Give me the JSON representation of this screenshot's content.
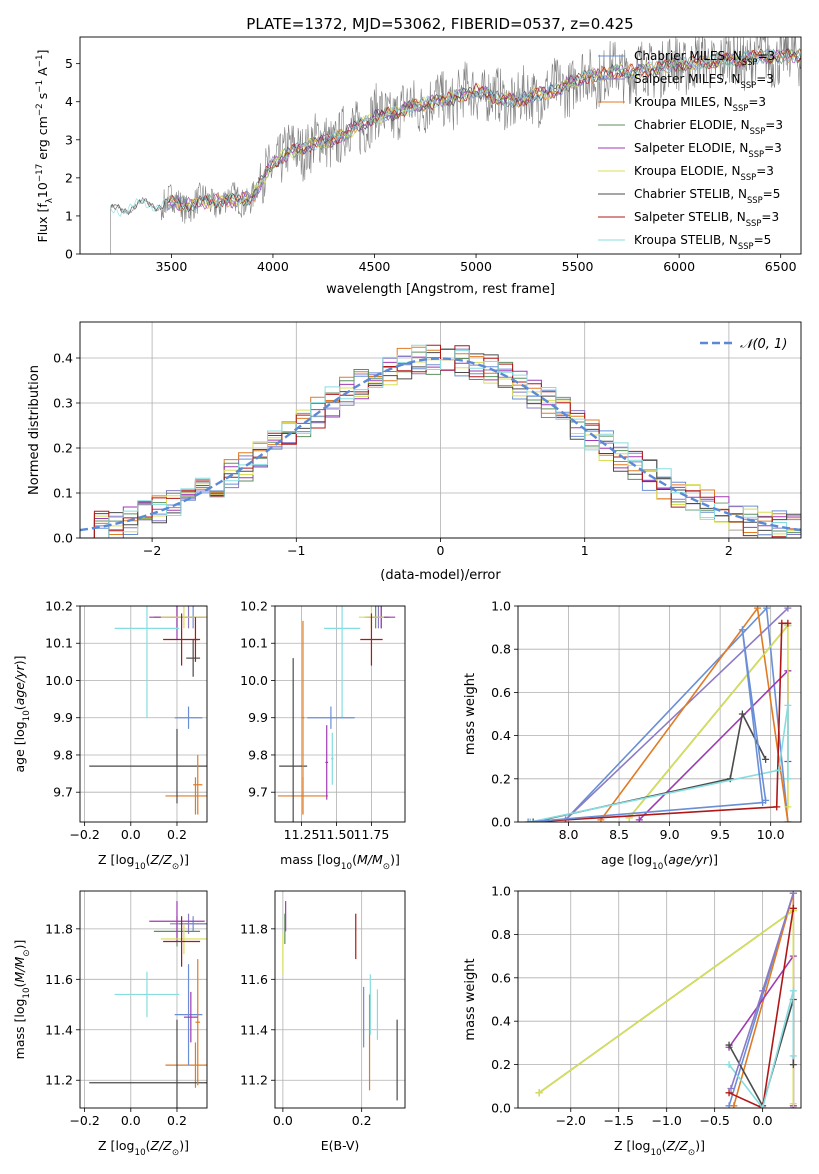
{
  "page_title": "PLATE=1372, MJD=53062, FIBERID=0537, z=0.425",
  "series_styles": [
    {
      "name": "Chabrier MILES",
      "color": "#6a8fd6"
    },
    {
      "name": "Salpeter MILES",
      "color": "#8b7bc6"
    },
    {
      "name": "Kroupa MILES",
      "color": "#e07b24"
    },
    {
      "name": "Chabrier ELODIE",
      "color": "#5f8f5f"
    },
    {
      "name": "Salpeter ELODIE",
      "color": "#a03ab3"
    },
    {
      "name": "Kroupa ELODIE",
      "color": "#d8df56"
    },
    {
      "name": "Chabrier STELIB",
      "color": "#4b4b4b"
    },
    {
      "name": "Salpeter STELIB",
      "color": "#b01818"
    },
    {
      "name": "Kroupa STELIB",
      "color": "#86dde0"
    }
  ],
  "chart_data": [
    {
      "id": "spectrum",
      "type": "line",
      "title": "PLATE=1372, MJD=53062, FIBERID=0537, z=0.425",
      "xlabel": "wavelength [Angstrom, rest frame]",
      "ylabel": "Flux [f_λ 10^-17 erg cm^-2 s^-1 A^-1]",
      "xlim": [
        3050,
        6600
      ],
      "ylim": [
        0,
        5.7
      ],
      "xticks": [
        3500,
        4000,
        4500,
        5000,
        5500,
        6000,
        6500
      ],
      "yticks": [
        0,
        1,
        2,
        3,
        4,
        5
      ],
      "legend_position": "top-right",
      "legend_labels": [
        {
          "base": "Chabrier MILES, N",
          "sub": "SSP",
          "tail": "=3"
        },
        {
          "base": "Salpeter MILES, N",
          "sub": "SSP",
          "tail": "=3"
        },
        {
          "base": "Kroupa MILES, N",
          "sub": "SSP",
          "tail": "=3"
        },
        {
          "base": "Chabrier ELODIE, N",
          "sub": "SSP",
          "tail": "=3"
        },
        {
          "base": "Salpeter ELODIE, N",
          "sub": "SSP",
          "tail": "=3"
        },
        {
          "base": "Kroupa ELODIE, N",
          "sub": "SSP",
          "tail": "=3"
        },
        {
          "base": "Chabrier STELIB, N",
          "sub": "SSP",
          "tail": "=5"
        },
        {
          "base": "Salpeter STELIB, N",
          "sub": "SSP",
          "tail": "=3"
        },
        {
          "base": "Kroupa STELIB, N",
          "sub": "SSP",
          "tail": "=5"
        }
      ],
      "continuum": [
        [
          3200,
          1.1
        ],
        [
          3300,
          1.25
        ],
        [
          3400,
          1.3
        ],
        [
          3500,
          1.35
        ],
        [
          3600,
          1.3
        ],
        [
          3700,
          1.4
        ],
        [
          3800,
          1.4
        ],
        [
          3900,
          1.5
        ],
        [
          4000,
          2.4
        ],
        [
          4100,
          2.7
        ],
        [
          4200,
          2.9
        ],
        [
          4300,
          3.0
        ],
        [
          4400,
          3.3
        ],
        [
          4500,
          3.6
        ],
        [
          4600,
          3.7
        ],
        [
          4700,
          3.9
        ],
        [
          4800,
          4.0
        ],
        [
          4900,
          4.1
        ],
        [
          5000,
          4.3
        ],
        [
          5100,
          4.1
        ],
        [
          5200,
          4.0
        ],
        [
          5300,
          4.2
        ],
        [
          5400,
          4.3
        ],
        [
          5500,
          4.6
        ],
        [
          5600,
          4.7
        ],
        [
          5700,
          4.8
        ],
        [
          5800,
          4.8
        ],
        [
          5900,
          4.9
        ],
        [
          6000,
          5.0
        ],
        [
          6100,
          5.0
        ],
        [
          6200,
          5.1
        ],
        [
          6300,
          5.1
        ],
        [
          6400,
          5.2
        ],
        [
          6500,
          5.2
        ]
      ]
    },
    {
      "id": "residuals",
      "type": "histogram",
      "xlabel": "(data-model)/error",
      "ylabel": "Normed distribution",
      "xlim": [
        -2.5,
        2.5
      ],
      "ylim": [
        0,
        0.48
      ],
      "xticks": [
        -2,
        -1,
        0,
        1,
        2
      ],
      "yticks": [
        0.0,
        0.1,
        0.2,
        0.3,
        0.4
      ],
      "legend_label": "N(0,1)",
      "legend_position": "top-right"
    },
    {
      "id": "age_vs_Z",
      "type": "scatter",
      "xlabel": "Z [log10(Z/Z⊙)]",
      "ylabel": "age [log10(age/yr)]",
      "xlim": [
        -0.22,
        0.33
      ],
      "ylim": [
        9.62,
        10.2
      ],
      "xticks": [
        -0.2,
        0.0,
        0.2
      ],
      "yticks": [
        9.7,
        9.8,
        9.9,
        10.0,
        10.1,
        10.2
      ],
      "points": [
        {
          "s": 0,
          "x": 0.27,
          "y": 10.17,
          "ex": 0.06,
          "ey": 0.03
        },
        {
          "s": 1,
          "x": 0.25,
          "y": 10.17,
          "ex": 0.08,
          "ey": 0.03
        },
        {
          "s": 2,
          "x": 0.28,
          "y": 9.69,
          "ex": 0.13,
          "ey": 0.05
        },
        {
          "s": 3,
          "x": 0.2,
          "y": 10.17,
          "ex": 0.1,
          "ey": 0.03
        },
        {
          "s": 4,
          "x": 0.2,
          "y": 10.17,
          "ex": 0.12,
          "ey": 0.06
        },
        {
          "s": 5,
          "x": 0.23,
          "y": 10.17,
          "ex": 0.1,
          "ey": 0.03
        },
        {
          "s": 6,
          "x": 0.2,
          "y": 9.77,
          "ex": 0.38,
          "ey": 0.1
        },
        {
          "s": 7,
          "x": 0.22,
          "y": 10.11,
          "ex": 0.08,
          "ey": 0.07
        },
        {
          "s": 8,
          "x": 0.07,
          "y": 10.14,
          "ex": 0.14,
          "ey": 0.24
        },
        {
          "s": 0,
          "x": 0.25,
          "y": 9.9,
          "ex": 0.06,
          "ey": 0.03
        },
        {
          "s": 6,
          "x": 0.27,
          "y": 10.06,
          "ex": 0.03,
          "ey": 0.05
        },
        {
          "s": 2,
          "x": 0.29,
          "y": 9.72,
          "ex": 0.02,
          "ey": 0.08
        },
        {
          "s": 7,
          "x": 0.28,
          "y": 10.11,
          "ex": 0.01,
          "ey": 0.06
        }
      ]
    },
    {
      "id": "age_vs_mass",
      "type": "scatter",
      "xlabel": "mass [log10(M/M⊙)]",
      "ylabel": "",
      "xlim": [
        11.06,
        11.99
      ],
      "ylim": [
        9.62,
        10.2
      ],
      "xticks": [
        11.25,
        11.5,
        11.75
      ],
      "yticks": [
        9.7,
        9.8,
        9.9,
        10.0,
        10.1,
        10.2
      ],
      "points": [
        {
          "s": 0,
          "x": 11.82,
          "y": 10.17,
          "ex": 0.06,
          "ey": 0.03
        },
        {
          "s": 1,
          "x": 11.8,
          "y": 10.17,
          "ex": 0.04,
          "ey": 0.03
        },
        {
          "s": 2,
          "x": 11.26,
          "y": 9.69,
          "ex": 0.18,
          "ey": 0.05
        },
        {
          "s": 3,
          "x": 11.78,
          "y": 10.17,
          "ex": 0.08,
          "ey": 0.03
        },
        {
          "s": 4,
          "x": 11.82,
          "y": 10.17,
          "ex": 0.1,
          "ey": 0.03
        },
        {
          "s": 5,
          "x": 11.75,
          "y": 10.17,
          "ex": 0.09,
          "ey": 0.03
        },
        {
          "s": 6,
          "x": 11.19,
          "y": 9.77,
          "ex": 0.1,
          "ey": 0.29
        },
        {
          "s": 7,
          "x": 11.75,
          "y": 10.11,
          "ex": 0.08,
          "ey": 0.07
        },
        {
          "s": 8,
          "x": 11.54,
          "y": 10.14,
          "ex": 0.13,
          "ey": 0.24
        },
        {
          "s": 0,
          "x": 11.46,
          "y": 9.9,
          "ex": 0.17,
          "ey": 0.03
        },
        {
          "s": 2,
          "x": 11.26,
          "y": 9.9,
          "ex": 0.01,
          "ey": 0.26
        },
        {
          "s": 4,
          "x": 11.43,
          "y": 9.78,
          "ex": 0.01,
          "ey": 0.1
        },
        {
          "s": 8,
          "x": 11.47,
          "y": 9.79,
          "ex": 0.01,
          "ey": 0.07
        }
      ]
    },
    {
      "id": "weight_vs_age",
      "type": "line",
      "xlabel": "age [log10(age/yr)]",
      "ylabel": "mass weight",
      "xlim": [
        7.5,
        10.3
      ],
      "ylim": [
        0,
        1.0
      ],
      "xticks": [
        8.0,
        8.5,
        9.0,
        9.5,
        10.0
      ],
      "yticks": [
        0.0,
        0.2,
        0.4,
        0.6,
        0.8,
        1.0
      ],
      "series": [
        {
          "s": 0,
          "x": [
            7.97,
            9.96,
            10.17
          ],
          "y": [
            0.01,
            0.99,
            0.0
          ]
        },
        {
          "s": 1,
          "x": [
            7.97,
            10.17
          ],
          "y": [
            0.01,
            0.99
          ]
        },
        {
          "s": 2,
          "x": [
            8.32,
            9.87,
            10.17
          ],
          "y": [
            0.01,
            0.99,
            0.0
          ]
        },
        {
          "s": 3,
          "x": [
            8.6,
            10.17
          ],
          "y": [
            0.02,
            0.91
          ]
        },
        {
          "s": 4,
          "x": [
            8.7,
            10.17,
            10.17
          ],
          "y": [
            0.01,
            0.7,
            0.28
          ]
        },
        {
          "s": 5,
          "x": [
            8.6,
            10.17,
            10.17
          ],
          "y": [
            0.02,
            0.91,
            0.07
          ]
        },
        {
          "s": 6,
          "x": [
            7.65,
            9.6,
            9.72,
            9.95
          ],
          "y": [
            0.0,
            0.2,
            0.5,
            0.29
          ]
        },
        {
          "s": 7,
          "x": [
            7.62,
            10.06,
            10.11,
            10.17
          ],
          "y": [
            0.0,
            0.07,
            0.92,
            0.92
          ]
        },
        {
          "s": 8,
          "x": [
            7.62,
            10.08,
            10.17,
            10.17
          ],
          "y": [
            0.0,
            0.24,
            0.54,
            0.2
          ]
        },
        {
          "s": 0,
          "x": [
            7.6,
            9.92,
            9.72,
            9.95
          ],
          "y": [
            0.0,
            0.09,
            0.89,
            0.1
          ]
        }
      ]
    },
    {
      "id": "mass_vs_Z",
      "type": "scatter",
      "xlabel": "Z [log10(Z/Z⊙)]",
      "ylabel": "mass [log10(M/M⊙)]",
      "xlim": [
        -0.22,
        0.33
      ],
      "ylim": [
        11.09,
        11.95
      ],
      "xticks": [
        -0.2,
        0.0,
        0.2
      ],
      "yticks": [
        11.2,
        11.4,
        11.6,
        11.8
      ],
      "points": [
        {
          "s": 0,
          "x": 0.27,
          "y": 11.82,
          "ex": 0.06,
          "ey": 0.03
        },
        {
          "s": 1,
          "x": 0.25,
          "y": 11.82,
          "ex": 0.08,
          "ey": 0.04
        },
        {
          "s": 2,
          "x": 0.28,
          "y": 11.26,
          "ex": 0.13,
          "ey": 0.09
        },
        {
          "s": 3,
          "x": 0.2,
          "y": 11.79,
          "ex": 0.1,
          "ey": 0.06
        },
        {
          "s": 4,
          "x": 0.2,
          "y": 11.83,
          "ex": 0.12,
          "ey": 0.08
        },
        {
          "s": 5,
          "x": 0.23,
          "y": 11.76,
          "ex": 0.1,
          "ey": 0.06
        },
        {
          "s": 6,
          "x": 0.2,
          "y": 11.19,
          "ex": 0.38,
          "ey": 0.25
        },
        {
          "s": 7,
          "x": 0.22,
          "y": 11.75,
          "ex": 0.08,
          "ey": 0.1
        },
        {
          "s": 8,
          "x": 0.07,
          "y": 11.54,
          "ex": 0.14,
          "ey": 0.09
        },
        {
          "s": 0,
          "x": 0.25,
          "y": 11.46,
          "ex": 0.06,
          "ey": 0.2
        },
        {
          "s": 2,
          "x": 0.29,
          "y": 11.43,
          "ex": 0.01,
          "ey": 0.25
        },
        {
          "s": 4,
          "x": 0.26,
          "y": 11.45,
          "ex": 0.03,
          "ey": 0.1
        }
      ]
    },
    {
      "id": "mass_vs_EBV",
      "type": "scatter",
      "xlabel": "E(B-V)",
      "ylabel": "",
      "xlim": [
        -0.02,
        0.31
      ],
      "ylim": [
        11.09,
        11.95
      ],
      "xticks": [
        0.0,
        0.2
      ],
      "yticks": [
        11.2,
        11.4,
        11.6,
        11.8
      ],
      "points": [
        {
          "s": 0,
          "x": 0.205,
          "y": 11.45,
          "ex": 0,
          "ey": 0.12
        },
        {
          "s": 2,
          "x": 0.22,
          "y": 11.35,
          "ex": 0,
          "ey": 0.19
        },
        {
          "s": 3,
          "x": 0.005,
          "y": 11.8,
          "ex": 0,
          "ey": 0.06
        },
        {
          "s": 4,
          "x": 0.007,
          "y": 11.85,
          "ex": 0,
          "ey": 0.06
        },
        {
          "s": 5,
          "x": 0.0,
          "y": 11.7,
          "ex": 0,
          "ey": 0.08
        },
        {
          "s": 6,
          "x": 0.29,
          "y": 11.28,
          "ex": 0,
          "ey": 0.16
        },
        {
          "s": 7,
          "x": 0.185,
          "y": 11.77,
          "ex": 0,
          "ey": 0.09
        },
        {
          "s": 8,
          "x": 0.24,
          "y": 11.46,
          "ex": 0,
          "ey": 0.1
        },
        {
          "s": 8,
          "x": 0.222,
          "y": 11.5,
          "ex": 0,
          "ey": 0.12
        }
      ]
    },
    {
      "id": "weight_vs_Z",
      "type": "line",
      "xlabel": "Z [log10(Z/Z⊙)]",
      "ylabel": "mass weight",
      "xlim": [
        -2.55,
        0.4
      ],
      "ylim": [
        0,
        1.0
      ],
      "xticks": [
        -2.0,
        -1.5,
        -1.0,
        -0.5,
        0.0
      ],
      "yticks": [
        0.0,
        0.2,
        0.4,
        0.6,
        0.8,
        1.0
      ],
      "series": [
        {
          "s": 0,
          "x": [
            -0.35,
            0.32,
            0.32
          ],
          "y": [
            0.01,
            0.99,
            0.0
          ]
        },
        {
          "s": 2,
          "x": [
            -0.3,
            0.32,
            0.32
          ],
          "y": [
            0.01,
            0.99,
            0.0
          ]
        },
        {
          "s": 3,
          "x": [
            -2.33,
            0.32
          ],
          "y": [
            0.07,
            0.91
          ]
        },
        {
          "s": 4,
          "x": [
            -0.35,
            0.32,
            0.32
          ],
          "y": [
            0.28,
            0.7,
            0.01
          ]
        },
        {
          "s": 5,
          "x": [
            -2.33,
            0.32,
            0.32
          ],
          "y": [
            0.07,
            0.91,
            0.02
          ]
        },
        {
          "s": 6,
          "x": [
            -0.35,
            0.0,
            0.32,
            0.32
          ],
          "y": [
            0.29,
            0.01,
            0.5,
            0.2
          ]
        },
        {
          "s": 7,
          "x": [
            -0.35,
            0.0,
            0.32,
            0.32
          ],
          "y": [
            0.07,
            0.0,
            0.92,
            0.92
          ]
        },
        {
          "s": 8,
          "x": [
            -0.35,
            0.0,
            0.32,
            0.32
          ],
          "y": [
            0.2,
            0.0,
            0.54,
            0.24
          ]
        },
        {
          "s": 1,
          "x": [
            -0.33,
            0.0,
            0.32
          ],
          "y": [
            0.09,
            0.54,
            0.99
          ]
        }
      ]
    }
  ]
}
